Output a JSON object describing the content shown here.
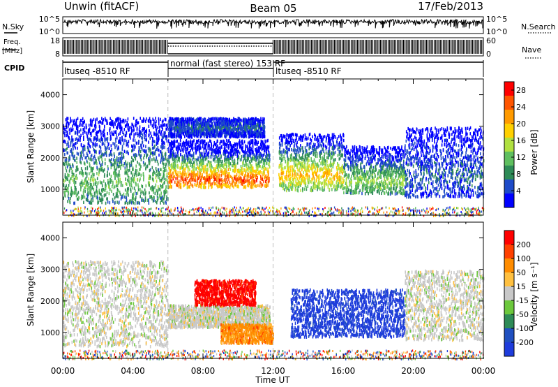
{
  "header": {
    "station": "Unwin (fitACF)",
    "beam": "Beam 05",
    "date": "17/Feb/2013"
  },
  "top_panels": {
    "nsky_label": "N.Sky",
    "nsky_ticks": [
      "10^5",
      "10^0"
    ],
    "nsearch_label": "N.Search",
    "nsearch_ticks": [
      "10^5",
      "10^0"
    ],
    "freq_label_1": "Freq.",
    "freq_label_2": "[MHz]",
    "freq_ticks": [
      "18",
      "8"
    ],
    "nave_label": "Nave",
    "nave_ticks": [
      "60",
      "0"
    ],
    "cpid_label": "CPID",
    "cpid_segments": [
      {
        "label": "ltuseq -8510 RF",
        "start_h": 0,
        "end_h": 6
      },
      {
        "label": "normal (fast stereo) 153 RF",
        "start_h": 6,
        "end_h": 12
      },
      {
        "label": "ltuseq -8510 RF",
        "start_h": 12,
        "end_h": 24
      }
    ]
  },
  "chart_data": [
    {
      "type": "heatmap",
      "title": "",
      "quantity": "Power",
      "xlabel": "Time UT",
      "ylabel": "Slant Range [km]",
      "xlim": [
        0,
        24
      ],
      "ylim": [
        180,
        4500
      ],
      "yticks": [
        "1000",
        "2000",
        "3000",
        "4000"
      ],
      "colorbar_label": "Power [dB]",
      "colorbar_ticks": [
        "4",
        "8",
        "12",
        "16",
        "20",
        "24",
        "28"
      ],
      "colorbar_range": [
        0,
        30
      ],
      "colors": [
        "#0000ff",
        "#1e4bc8",
        "#2e8b57",
        "#5fbf5f",
        "#b0e040",
        "#ffd000",
        "#ff9a00",
        "#ff5500",
        "#ff0000"
      ],
      "regions": [
        {
          "t0": 0.0,
          "t1": 6.0,
          "r0": 600,
          "r1": 3300,
          "peak_r": 1300,
          "peak_val": 12
        },
        {
          "t0": 6.0,
          "t1": 11.8,
          "r0": 1100,
          "r1": 2600,
          "peak_r": 1350,
          "peak_val": 26
        },
        {
          "t0": 6.0,
          "t1": 11.5,
          "r0": 2700,
          "r1": 3300,
          "peak_r": 3000,
          "peak_val": 6
        },
        {
          "t0": 12.3,
          "t1": 16.0,
          "r0": 1000,
          "r1": 2800,
          "peak_r": 1500,
          "peak_val": 20
        },
        {
          "t0": 16.0,
          "t1": 19.5,
          "r0": 900,
          "r1": 2400,
          "peak_r": 1300,
          "peak_val": 14
        },
        {
          "t0": 19.5,
          "t1": 24.0,
          "r0": 800,
          "r1": 3000,
          "peak_r": 1500,
          "peak_val": 6
        }
      ]
    },
    {
      "type": "heatmap",
      "title": "",
      "quantity": "Velocity",
      "xlabel": "Time UT",
      "ylabel": "Slant Range [km]",
      "xlim": [
        0,
        24
      ],
      "ylim": [
        180,
        4500
      ],
      "xticks": [
        "00:00",
        "04:00",
        "08:00",
        "12:00",
        "16:00",
        "20:00",
        "00:00"
      ],
      "yticks": [
        "1000",
        "2000",
        "3000",
        "4000"
      ],
      "colorbar_label": "Velocity [m s⁻¹]",
      "colorbar_ticks": [
        "200",
        "100",
        "50",
        "15",
        "-15",
        "-50",
        "-100",
        "-200"
      ],
      "colors": [
        "#1e3cdc",
        "#2050c0",
        "#2e8b57",
        "#6cc83c",
        "#c8c8c8",
        "#ffc040",
        "#ff8c00",
        "#ff4000",
        "#ff0000"
      ],
      "regions": [
        {
          "t0": 0.0,
          "t1": 6.0,
          "r0": 600,
          "r1": 3300,
          "class": 4
        },
        {
          "t0": 6.0,
          "t1": 11.8,
          "r0": 1200,
          "r1": 1900,
          "class": 4
        },
        {
          "t0": 7.5,
          "t1": 11.0,
          "r0": 1900,
          "r1": 2700,
          "class": 8
        },
        {
          "t0": 9.0,
          "t1": 12.0,
          "r0": 700,
          "r1": 1300,
          "class": 6
        },
        {
          "t0": 13.0,
          "t1": 19.5,
          "r0": 900,
          "r1": 2400,
          "class": 0
        },
        {
          "t0": 19.5,
          "t1": 24.0,
          "r0": 800,
          "r1": 3000,
          "class": 4
        }
      ]
    }
  ]
}
